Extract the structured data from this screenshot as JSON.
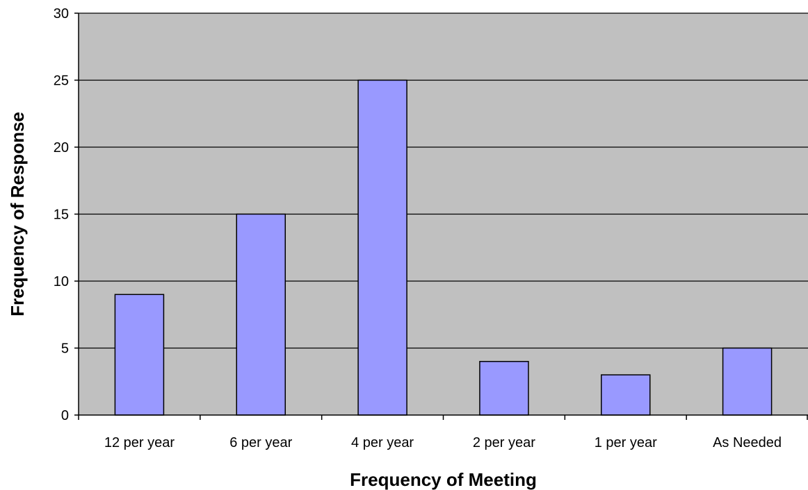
{
  "chart_data": {
    "type": "bar",
    "title": "",
    "xlabel": "Frequency of Meeting",
    "ylabel": "Frequency of Response",
    "categories": [
      "12 per year",
      "6 per year",
      "4 per year",
      "2 per year",
      "1 per year",
      "As Needed"
    ],
    "values": [
      9,
      15,
      25,
      4,
      3,
      5
    ],
    "ylim": [
      0,
      30
    ],
    "yticks": [
      0,
      5,
      10,
      15,
      20,
      25,
      30
    ],
    "grid": true,
    "legend": "none",
    "colors": {
      "plot_background": "#c0c0c0",
      "bar_fill": "#9999ff",
      "bar_stroke": "#000000",
      "gridline": "#000000"
    }
  }
}
